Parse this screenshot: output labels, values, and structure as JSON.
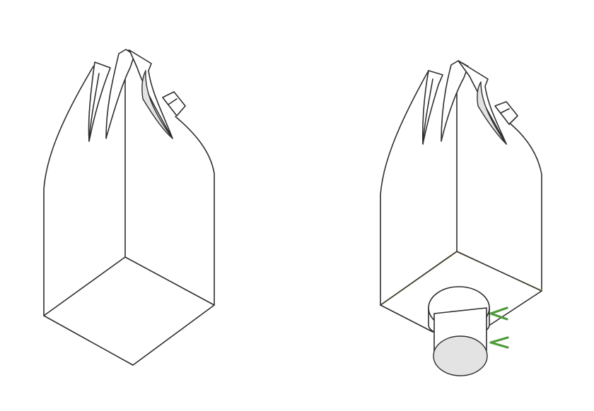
{
  "bags": [
    {
      "id": "left",
      "variant": "flat-bottom"
    },
    {
      "id": "right",
      "variant": "discharge-spout-bottom"
    }
  ],
  "colors": {
    "outline": "#2e2e2e",
    "panel_fill": "#ffffff",
    "shade_fill": "#e3e3e3",
    "base_accent": "#e4d8a6",
    "arrow": "#4e9a3a"
  }
}
